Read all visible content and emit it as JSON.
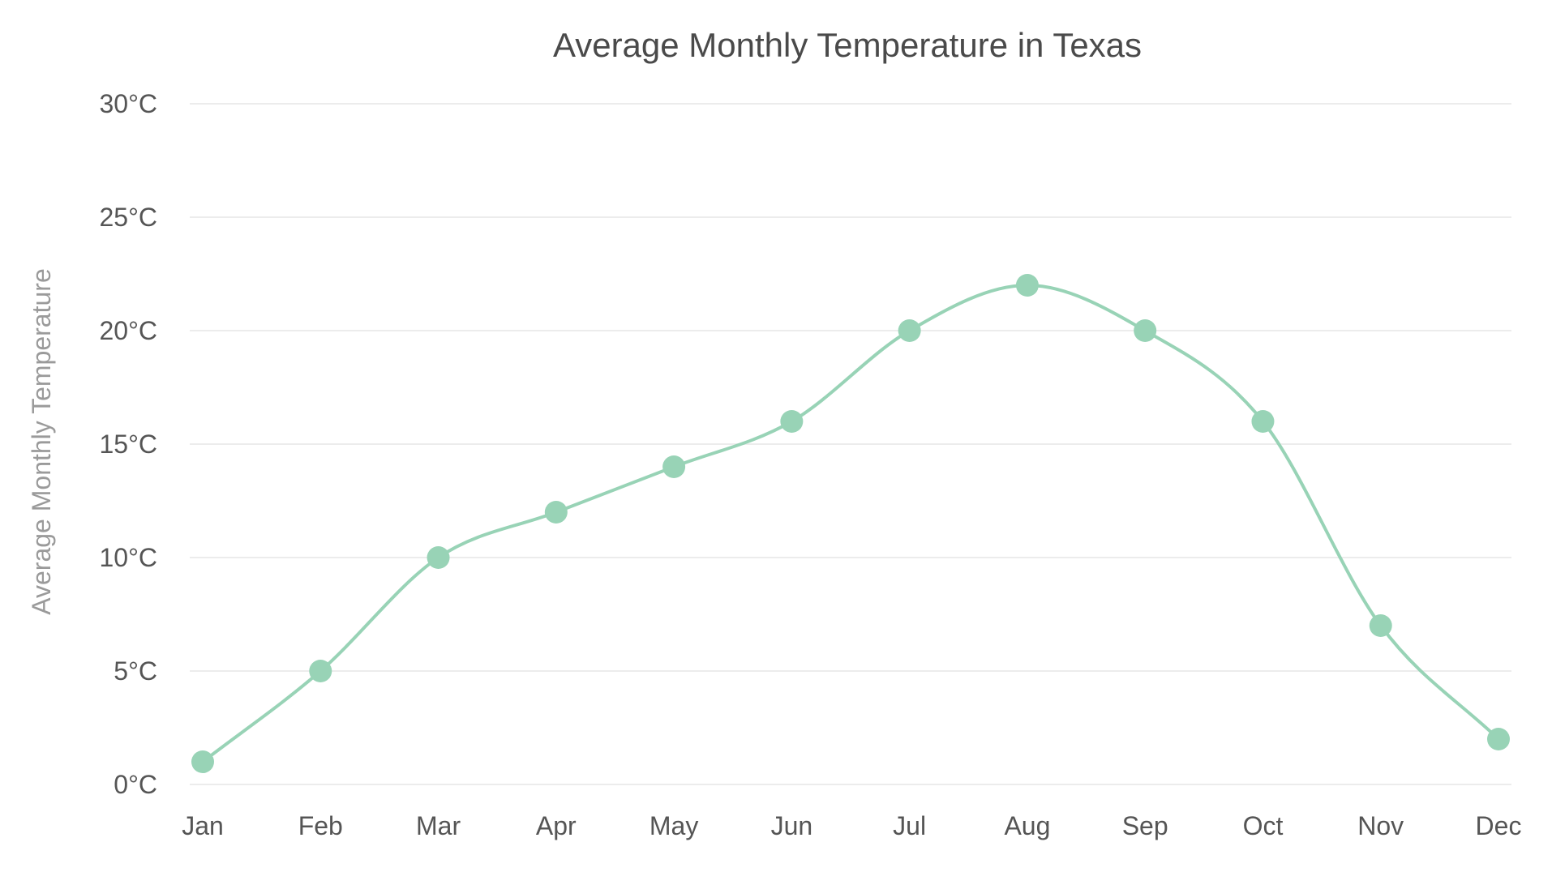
{
  "colors": {
    "series": "#98d3b6",
    "grid": "#ececec",
    "title": "#4a4a4a",
    "axis_title": "#9a9a9a",
    "tick_label": "#555555"
  },
  "chart_data": {
    "type": "line",
    "title": "Average Monthly Temperature in Texas",
    "xlabel": "",
    "ylabel": "Average Monthly Temperature",
    "categories": [
      "Jan",
      "Feb",
      "Mar",
      "Apr",
      "May",
      "Jun",
      "Jul",
      "Aug",
      "Sep",
      "Oct",
      "Nov",
      "Dec"
    ],
    "series": [
      {
        "values": [
          1,
          5,
          10,
          12,
          14,
          16,
          20,
          22,
          20,
          16,
          7,
          2
        ]
      }
    ],
    "ylim": [
      0,
      30
    ],
    "yticks": [
      0,
      5,
      10,
      15,
      20,
      25,
      30
    ],
    "ytick_labels": [
      "0°C",
      "5°C",
      "10°C",
      "15°C",
      "20°C",
      "25°C",
      "30°C"
    ],
    "grid": true,
    "legend": "none",
    "smooth": true,
    "markers": true
  }
}
